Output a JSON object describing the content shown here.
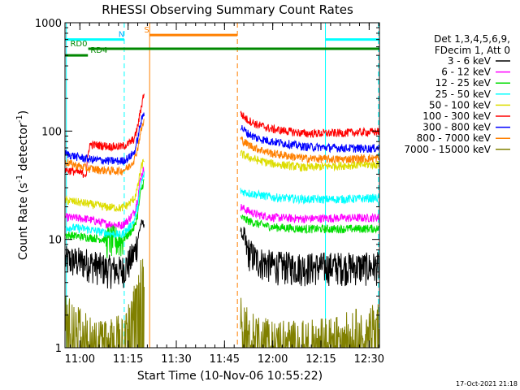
{
  "chart_data": {
    "type": "line",
    "title": "RHESSI Observing Summary Count Rates",
    "xlabel": "Start Time (10-Nov-06 10:55:22)",
    "ylabel_main": "Count Rate (s",
    "ylabel_sup1": "-1",
    "ylabel_mid": " detector",
    "ylabel_sup2": "-1",
    "ylabel_end": ")",
    "footer_date": "17-Oct-2021 21:18",
    "x_range_min": [
      55.37,
      153.2
    ],
    "y_range": [
      1,
      1000
    ],
    "y_scale": "log",
    "y_ticks": [
      {
        "v": 1,
        "label": "1"
      },
      {
        "v": 10,
        "label": "10"
      },
      {
        "v": 100,
        "label": "100"
      },
      {
        "v": 1000,
        "label": "1000"
      }
    ],
    "x_ticks": [
      {
        "v": 60,
        "label": "11:00"
      },
      {
        "v": 75,
        "label": "11:15"
      },
      {
        "v": 90,
        "label": "11:30"
      },
      {
        "v": 105,
        "label": "11:45"
      },
      {
        "v": 120,
        "label": "12:00"
      },
      {
        "v": 135,
        "label": "12:15"
      },
      {
        "v": 150,
        "label": "12:30"
      }
    ],
    "legend": {
      "header1": "Det 1,3,4,5,6,9,",
      "header2": "FDecim 1, Att 0",
      "placement": "right"
    },
    "series": [
      {
        "name": "3 - 6 keV",
        "color": "#000000",
        "seg1": [
          [
            55.5,
            6.5
          ],
          [
            62,
            6.2
          ],
          [
            68,
            5.4
          ],
          [
            73,
            5.2
          ],
          [
            75,
            6.0
          ],
          [
            77,
            7.5
          ],
          [
            78,
            10
          ],
          [
            79,
            14
          ],
          [
            80,
            14
          ]
        ],
        "seg2": [
          [
            110,
            12
          ],
          [
            112,
            8
          ],
          [
            115,
            6.5
          ],
          [
            120,
            5.8
          ],
          [
            130,
            5.6
          ],
          [
            140,
            5.7
          ],
          [
            150,
            5.6
          ],
          [
            153,
            5.7
          ]
        ]
      },
      {
        "name": "6 - 12 keV",
        "color": "#ff00ff",
        "seg1": [
          [
            55.5,
            16
          ],
          [
            62,
            15.5
          ],
          [
            68,
            14
          ],
          [
            73,
            13.5
          ],
          [
            75,
            15
          ],
          [
            77,
            18
          ],
          [
            78,
            24
          ],
          [
            79,
            38
          ],
          [
            80,
            45
          ]
        ],
        "seg2": [
          [
            110,
            20
          ],
          [
            112,
            18.5
          ],
          [
            115,
            17
          ],
          [
            120,
            16
          ],
          [
            130,
            15.5
          ],
          [
            140,
            15.8
          ],
          [
            150,
            15.8
          ],
          [
            153,
            16
          ]
        ]
      },
      {
        "name": "12 - 25 keV",
        "color": "#00dd00",
        "seg1": [
          [
            55.5,
            11
          ],
          [
            62,
            10.5
          ],
          [
            68,
            10
          ],
          [
            73,
            9.8
          ],
          [
            75,
            11
          ],
          [
            77,
            13
          ],
          [
            78,
            17
          ],
          [
            79,
            28
          ],
          [
            80,
            35
          ]
        ],
        "seg2": [
          [
            110,
            16
          ],
          [
            112,
            15
          ],
          [
            115,
            14
          ],
          [
            120,
            13
          ],
          [
            130,
            12.5
          ],
          [
            140,
            12.5
          ],
          [
            150,
            12.6
          ],
          [
            153,
            12.6
          ]
        ]
      },
      {
        "name": "25 - 50 keV",
        "color": "#00ffff",
        "seg1": [
          [
            55.5,
            13
          ],
          [
            62,
            12.5
          ],
          [
            68,
            11.5
          ],
          [
            73,
            11
          ],
          [
            75,
            12.5
          ],
          [
            77,
            15
          ],
          [
            78,
            20
          ],
          [
            79,
            32
          ],
          [
            80,
            40
          ]
        ],
        "seg2": [
          [
            110,
            28
          ],
          [
            112,
            27
          ],
          [
            115,
            26
          ],
          [
            120,
            24.5
          ],
          [
            130,
            23.5
          ],
          [
            140,
            23.5
          ],
          [
            150,
            24
          ],
          [
            153,
            24
          ]
        ]
      },
      {
        "name": "50 - 100 keV",
        "color": "#dddd00",
        "seg1": [
          [
            55.5,
            23
          ],
          [
            62,
            21.5
          ],
          [
            68,
            20
          ],
          [
            73,
            19.5
          ],
          [
            75,
            21
          ],
          [
            77,
            24
          ],
          [
            78,
            30
          ],
          [
            79,
            45
          ],
          [
            80,
            55
          ]
        ],
        "seg2": [
          [
            110,
            62
          ],
          [
            112,
            58
          ],
          [
            115,
            54
          ],
          [
            120,
            50
          ],
          [
            130,
            46
          ],
          [
            140,
            48
          ],
          [
            150,
            49
          ],
          [
            153,
            49
          ]
        ]
      },
      {
        "name": "100 - 300 keV",
        "color": "#ff0000",
        "seg1": [
          [
            55.5,
            44
          ],
          [
            59,
            42
          ],
          [
            62,
            40
          ],
          [
            63,
            75
          ],
          [
            66,
            74
          ],
          [
            70,
            72
          ],
          [
            73,
            72
          ],
          [
            75,
            76
          ],
          [
            77,
            85
          ],
          [
            78,
            110
          ],
          [
            79,
            160
          ],
          [
            80,
            230
          ]
        ],
        "seg2": [
          [
            110,
            145
          ],
          [
            112,
            128
          ],
          [
            115,
            115
          ],
          [
            120,
            104
          ],
          [
            130,
            95
          ],
          [
            140,
            96
          ],
          [
            150,
            98
          ],
          [
            153,
            99
          ]
        ]
      },
      {
        "name": "300 - 800 keV",
        "color": "#0000ff",
        "seg1": [
          [
            55.5,
            62
          ],
          [
            59,
            58
          ],
          [
            63,
            55
          ],
          [
            66,
            54
          ],
          [
            70,
            53
          ],
          [
            73,
            53
          ],
          [
            75,
            56
          ],
          [
            77,
            64
          ],
          [
            78,
            85
          ],
          [
            79,
            120
          ],
          [
            80,
            150
          ]
        ],
        "seg2": [
          [
            110,
            110
          ],
          [
            112,
            96
          ],
          [
            115,
            86
          ],
          [
            120,
            80
          ],
          [
            130,
            72
          ],
          [
            140,
            70
          ],
          [
            150,
            69
          ],
          [
            153,
            70
          ]
        ]
      },
      {
        "name": "800 - 7000 keV",
        "color": "#ff8000",
        "seg1": [
          [
            55.5,
            52
          ],
          [
            59,
            48
          ],
          [
            63,
            45
          ],
          [
            66,
            44
          ],
          [
            70,
            43
          ],
          [
            73,
            43
          ],
          [
            75,
            46
          ],
          [
            77,
            55
          ],
          [
            78,
            70
          ],
          [
            79,
            100
          ],
          [
            80,
            125
          ]
        ],
        "seg2": [
          [
            110,
            85
          ],
          [
            112,
            76
          ],
          [
            115,
            69
          ],
          [
            120,
            62
          ],
          [
            130,
            56
          ],
          [
            140,
            55
          ],
          [
            150,
            56
          ],
          [
            153,
            56
          ]
        ]
      },
      {
        "name": "7000 - 15000 keV",
        "color": "#808000",
        "seg1": [
          [
            55.5,
            1.9
          ],
          [
            58,
            1.6
          ],
          [
            62,
            1.3
          ],
          [
            66,
            1.1
          ],
          [
            70,
            1.15
          ],
          [
            73,
            1.3
          ],
          [
            75,
            1.8
          ],
          [
            77,
            2.4
          ],
          [
            78,
            3.0
          ],
          [
            79,
            4.0
          ],
          [
            80,
            4.5
          ]
        ],
        "seg2": [
          [
            110,
            1.9
          ],
          [
            113,
            1.3
          ],
          [
            118,
            1.15
          ],
          [
            125,
            1.1
          ],
          [
            130,
            1.1
          ],
          [
            140,
            1.2
          ],
          [
            145,
            1.4
          ],
          [
            150,
            1.5
          ],
          [
            153,
            1.6
          ]
        ]
      }
    ],
    "status_bars": [
      {
        "label": "N",
        "color": "#00ffff",
        "segments": [
          [
            55.5,
            73.8
          ],
          [
            136.4,
            153.2
          ]
        ],
        "y": 700,
        "label_x": 72.0,
        "label_color": "#00aaff"
      },
      {
        "label": "S",
        "color": "#ff8000",
        "segments": [
          [
            81.7,
            109.0
          ]
        ],
        "y": 770,
        "label_x": 80.0,
        "label_color": "#ff8000"
      },
      {
        "label": "RD0",
        "color": "#008800",
        "segments": [
          [
            62.6,
            153.2
          ]
        ],
        "y": 575,
        "label_x": 57.0,
        "label_color": "#008800"
      },
      {
        "label": "RD4",
        "color": "#008800",
        "segments": [
          [
            55.5,
            62.5
          ]
        ],
        "y": 500,
        "label_x": 63.3,
        "label_color": "#008800"
      }
    ],
    "vertical_lines": [
      {
        "x": 55.8,
        "color": "#00ffff",
        "style": "solid"
      },
      {
        "x": 73.8,
        "color": "#00ffff",
        "style": "dashed"
      },
      {
        "x": 81.7,
        "color": "#ff8000",
        "style": "solid"
      },
      {
        "x": 109.0,
        "color": "#ff8000",
        "style": "dashed"
      },
      {
        "x": 136.4,
        "color": "#00ffff",
        "style": "solid"
      },
      {
        "x": 152.9,
        "color": "#00ffff",
        "style": "dashed"
      }
    ]
  }
}
